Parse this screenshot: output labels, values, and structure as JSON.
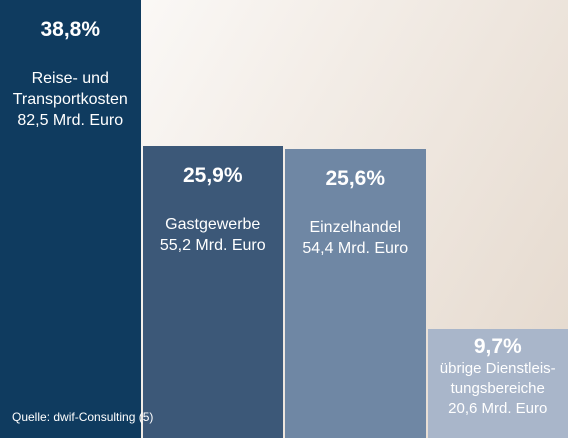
{
  "chart_data": {
    "type": "bar",
    "categories": [
      "Reise- und Transportkosten",
      "Gastgewerbe",
      "Einzelhandel",
      "übrige Dienstleis-tungsbereiche"
    ],
    "values": [
      38.8,
      25.9,
      25.6,
      9.7
    ],
    "value_labels": [
      "38,8%",
      "25,9%",
      "25,6%",
      "9,7%"
    ],
    "amounts": [
      "82,5 Mrd. Euro",
      "55,2 Mrd. Euro",
      "54,4 Mrd. Euro",
      "20,6 Mrd. Euro"
    ],
    "colors": [
      "#0f3b5f",
      "#3c5878",
      "#6f87a4",
      "#a9b6ca"
    ],
    "source": "Quelle: dwif-Consulting (5)"
  }
}
